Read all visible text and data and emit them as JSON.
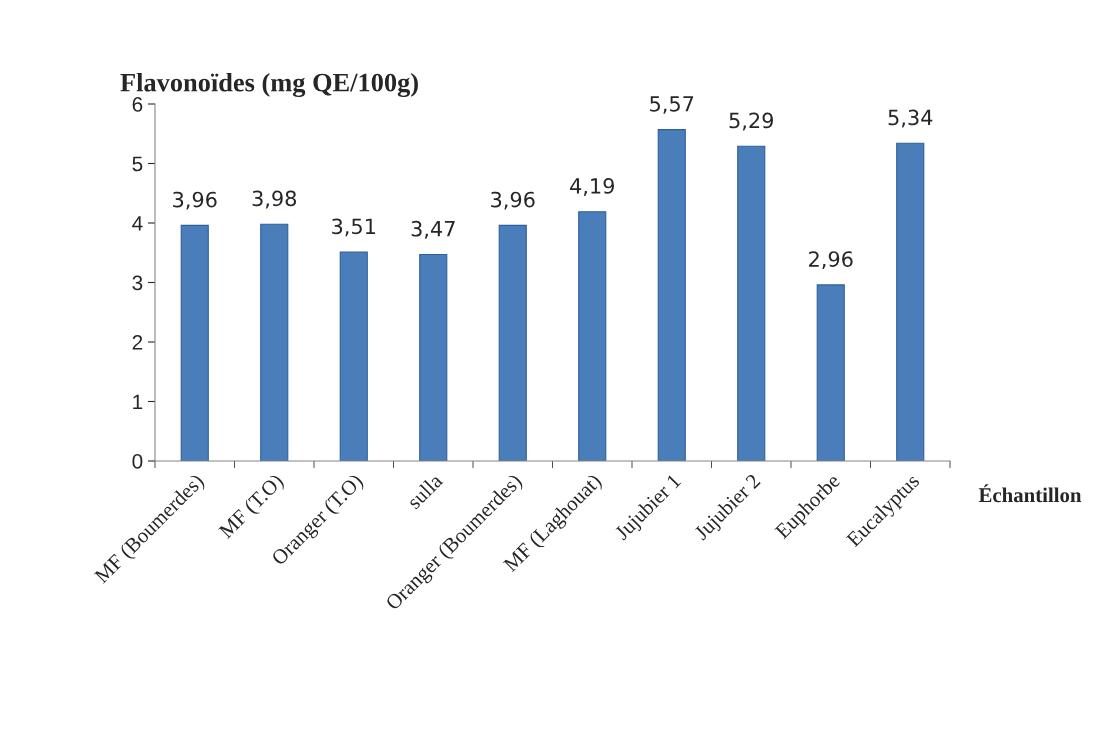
{
  "chart_data": {
    "type": "bar",
    "title": "Flavonoïdes (mg QE/100g)",
    "xlabel": "Échantillon",
    "categories": [
      "MF (Boumerdes)",
      "MF (T.O)",
      "Oranger (T.O)",
      "sulla",
      "Oranger (Boumerdes)",
      "MF (Laghouat)",
      "Jujubier 1",
      "Jujubier 2",
      "Euphorbe",
      "Eucalyptus"
    ],
    "values": [
      3.96,
      3.98,
      3.51,
      3.47,
      3.96,
      4.19,
      5.57,
      5.29,
      2.96,
      5.34
    ],
    "value_labels": [
      "3,96",
      "3,98",
      "3,51",
      "3,47",
      "3,96",
      "4,19",
      "5,57",
      "5,29",
      "2,96",
      "5,34"
    ],
    "color": "#4a7ebb",
    "ylim": [
      0,
      6
    ],
    "yticks": [
      0,
      1,
      2,
      3,
      4,
      5,
      6
    ],
    "grid": false,
    "legend": false
  }
}
